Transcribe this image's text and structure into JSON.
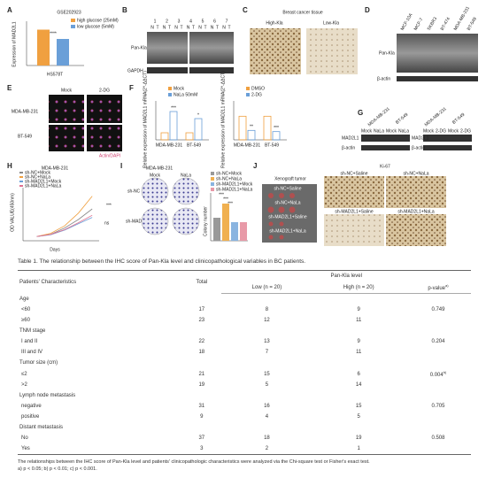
{
  "figure": {
    "A": {
      "letter": "A",
      "title": "GSE202923",
      "legend": [
        "high glucose (25mM)",
        "low glucose (5mM)"
      ],
      "colors": [
        "#f0a040",
        "#6a9fd8"
      ],
      "ylabel": "Expression of MAD2L1",
      "xlabel": "HS578T",
      "sig": "****",
      "values": [
        1.62,
        1.2
      ],
      "ylim": [
        0,
        2
      ]
    },
    "B": {
      "letter": "B",
      "lanes": [
        "1",
        "2",
        "3",
        "4",
        "5",
        "6",
        "7"
      ],
      "pair": [
        "N",
        "T"
      ],
      "blots": [
        "Pan-Kla",
        "GAPDH"
      ]
    },
    "C": {
      "letter": "C",
      "title": "Breast cancer tissue",
      "labels": [
        "High-Kla",
        "Low-Kla"
      ]
    },
    "D": {
      "letter": "D",
      "cells": [
        "MCF-10A",
        "MCF-7",
        "SKBR3",
        "BT-474",
        "MDA-MB-231",
        "BT-549"
      ],
      "blots": [
        "Pan-Kla",
        "β-actin"
      ]
    },
    "E": {
      "letter": "E",
      "cols": [
        "Mock",
        "2-DG"
      ],
      "rows": [
        "MDA-MB-231",
        "BT-549"
      ],
      "stain": "Actin/DAPI"
    },
    "F": {
      "letter": "F",
      "ylabel": "Relative expression of MAD2L1 mRNA(2^-ΔΔCT)",
      "groups": [
        "MDA-MB-231",
        "BT-549"
      ],
      "charts": [
        {
          "legend": [
            "Mock",
            "NaLa 50mM"
          ],
          "colors": [
            "#f0a040",
            "#6a9fd8"
          ],
          "values": [
            1.0,
            4.0,
            1.0,
            3.0
          ],
          "ylim": [
            0,
            5
          ],
          "sig": [
            "***",
            "*"
          ]
        },
        {
          "legend": [
            "DMSO",
            "2-DG"
          ],
          "colors": [
            "#f0a040",
            "#6a9fd8"
          ],
          "values": [
            1.0,
            0.4,
            1.0,
            0.35
          ],
          "ylim": [
            0,
            1.5
          ],
          "sig": [
            "**",
            "***"
          ]
        }
      ]
    },
    "G": {
      "letter": "G",
      "cells": [
        "MDA-MB-231",
        "BT-549",
        "MDA-MB-231",
        "BT-549"
      ],
      "treat": [
        "Mock",
        "NaLa",
        "Mock",
        "NaLa",
        "Mock",
        "2-DG",
        "Mock",
        "2-DG"
      ],
      "blots": [
        "MAD2L1",
        "β-actin"
      ]
    },
    "H": {
      "letter": "H",
      "title": "MDA-MB-231",
      "ylabel": "OD VALUE(450nm)",
      "xlabel": "Days",
      "sig": [
        "***",
        "ns"
      ],
      "x": [
        1,
        2,
        3,
        4,
        5
      ],
      "xlim": [
        0,
        5.5
      ],
      "ylim": [
        0,
        2.5
      ],
      "series": [
        {
          "name": "sh-NC+Mock",
          "color": "#888888",
          "values": [
            0.2,
            0.3,
            0.6,
            1.0,
            1.5
          ]
        },
        {
          "name": "sh-NC+NaLa",
          "color": "#f0a040",
          "values": [
            0.2,
            0.35,
            0.7,
            1.3,
            2.1
          ]
        },
        {
          "name": "sh-MAD2L1+Mock",
          "color": "#6a9fd8",
          "values": [
            0.2,
            0.28,
            0.5,
            0.8,
            1.1
          ]
        },
        {
          "name": "sh-MAD2L1+NaLa",
          "color": "#e07090",
          "values": [
            0.2,
            0.3,
            0.52,
            0.85,
            1.2
          ]
        }
      ]
    },
    "I": {
      "letter": "I",
      "title": "MDA-MB-231",
      "cols": [
        "Mock",
        "NaLa"
      ],
      "rows": [
        "sh-NC",
        "sh-MAD2L1"
      ],
      "ylabel": "Colony number",
      "sig": [
        "***",
        "***",
        "***"
      ],
      "legend": [
        "sh-NC+Mock",
        "sh-NC+NaLa",
        "sh-MAD2L1+Mock",
        "sh-MAD2L1+NaLa"
      ],
      "colors": [
        "#999999",
        "#f0b050",
        "#8ab4e0",
        "#e89aa8"
      ],
      "values": [
        130,
        210,
        105,
        105
      ],
      "ylim": [
        0,
        250
      ]
    },
    "J": {
      "letter": "J",
      "title": "Xenograft tumor",
      "groups": [
        "sh-NC+Saline",
        "sh-NC+NaLa",
        "sh-MAD2L1+Saline",
        "sh-MAD2L1+NaLa"
      ],
      "stain": "Ki-67"
    }
  },
  "table": {
    "caption": "Table 1. The relationship between the IHC score of Pan-Kla level and clinicopathological variables in BC patients.",
    "header": [
      "Patients' Characteristics",
      "Total",
      "Pan-Kla level"
    ],
    "subheader": [
      "Low (n = 20)",
      "High (n = 20)",
      {
        "text": "p-value",
        "note": "a)"
      }
    ],
    "rows": [
      [
        "Age"
      ],
      [
        "<60",
        17,
        8,
        9,
        0.749
      ],
      [
        "≥60",
        23,
        12,
        11
      ],
      [
        "TNM stage"
      ],
      [
        "I and II",
        22,
        13,
        9,
        0.204
      ],
      [
        "III and IV",
        18,
        7,
        11
      ],
      [
        "Tumor size (cm)"
      ],
      [
        "≤2",
        21,
        15,
        6,
        {
          "text": "0.004",
          "note": "b)"
        }
      ],
      [
        ">2",
        19,
        5,
        14
      ],
      [
        "Lymph node metastasis"
      ],
      [
        "negative",
        31,
        16,
        15,
        0.705
      ],
      [
        "positive",
        9,
        4,
        5
      ],
      [
        "Distant metastasis"
      ],
      [
        "No",
        37,
        18,
        19,
        0.508
      ],
      [
        "Yes",
        3,
        2,
        1
      ]
    ]
  },
  "footnote": [
    "The relationships between the IHC score of Pan-Kla level and patients' clinicopathologic characteristics were analyzed via the Chi-square test or Fisher's exact test.",
    "a) p < 0.05; b) p < 0.01; c) p < 0.001."
  ]
}
